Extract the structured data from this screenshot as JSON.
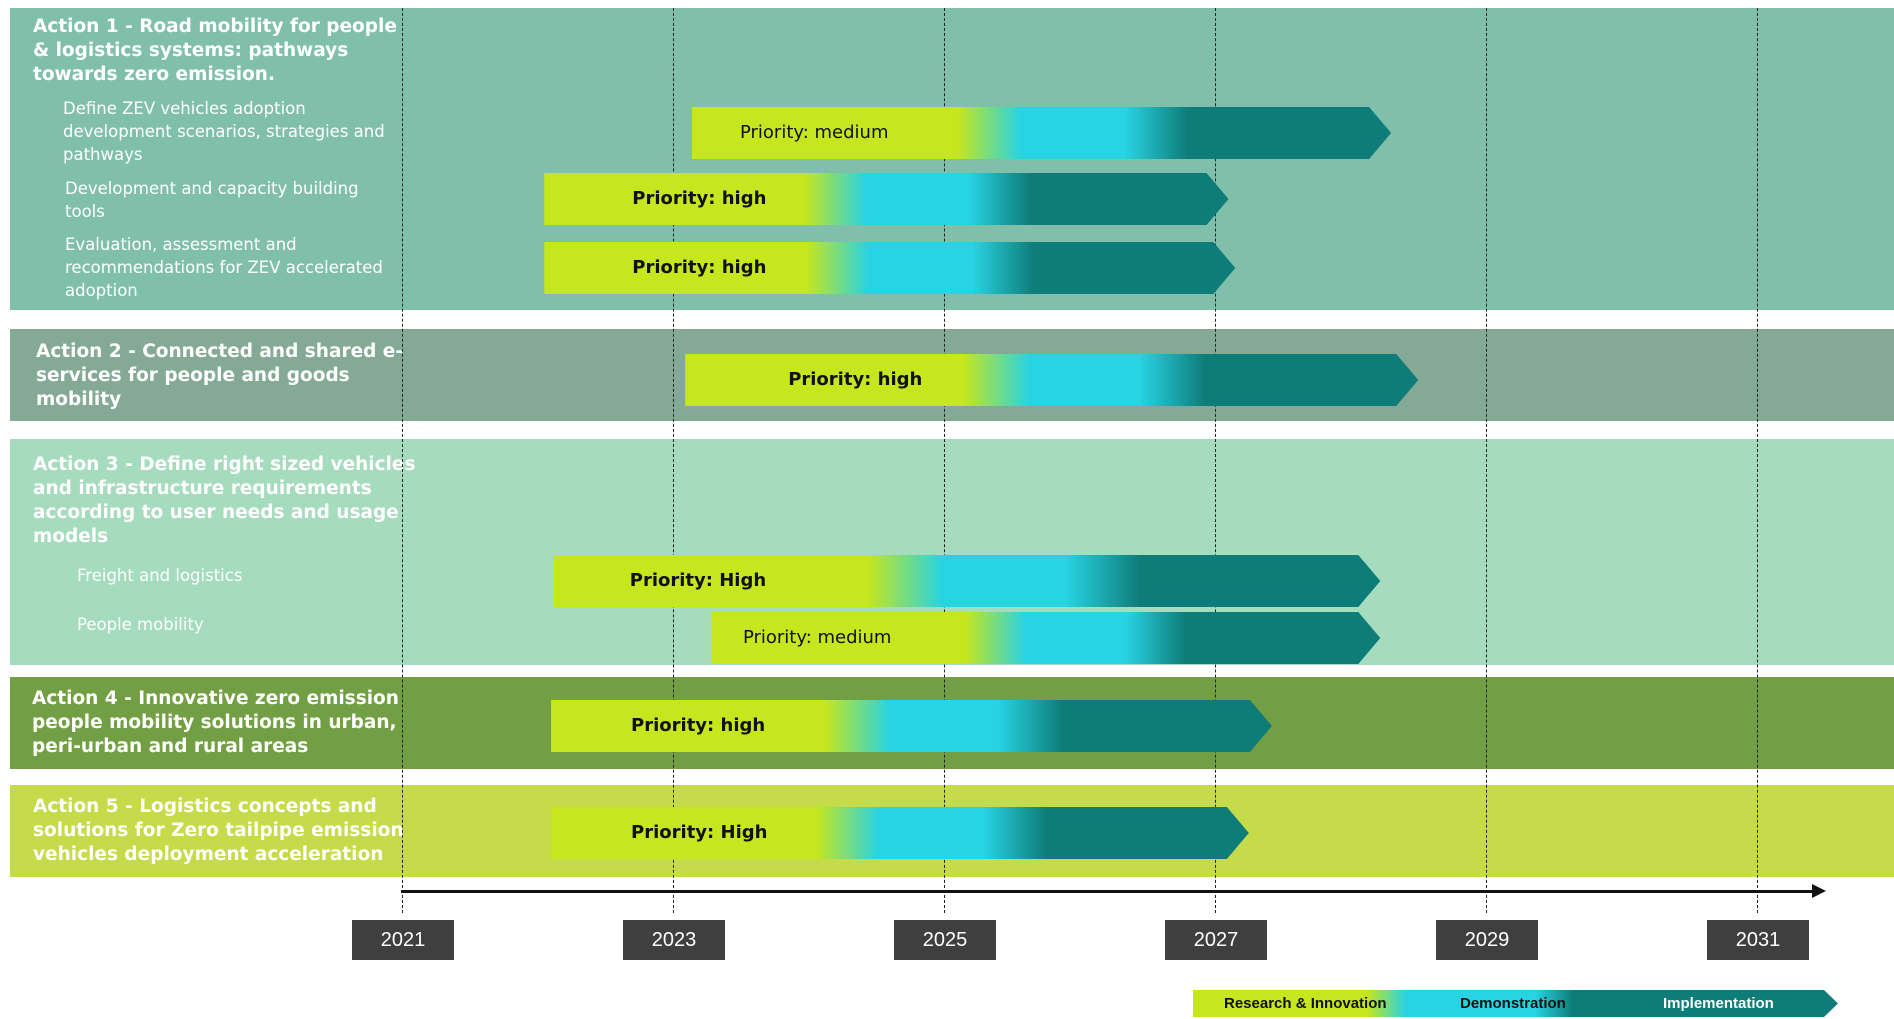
{
  "colors": {
    "action1_band": "#80c0aa",
    "action2_band": "#84aa96",
    "action3_band": "#a6dcbe",
    "action4_band": "#729f43",
    "action5_band": "#c6db4a",
    "research": "#c6e61d",
    "demonstration": "#28d3e3",
    "implementation": "#0e7c78",
    "year_box": "#3f3f3f"
  },
  "actions": [
    {
      "title_lines": [
        "Action 1 - Road mobility for people",
        "& logistics systems: pathways",
        "towards zero emission."
      ],
      "subs": [
        {
          "lines": [
            "Define ZEV vehicles adoption",
            "development scenarios, strategies and",
            "pathways"
          ]
        },
        {
          "lines": [
            "Development and capacity building",
            "tools"
          ]
        },
        {
          "lines": [
            "Evaluation, assessment and",
            "recommendations for ZEV accelerated",
            "adoption"
          ]
        }
      ]
    },
    {
      "title_lines": [
        "Action 2 - Connected and shared e-",
        "services for people and goods",
        "mobility"
      ],
      "subs": []
    },
    {
      "title_lines": [
        "Action 3 - Define right sized vehicles",
        "and infrastructure requirements",
        "according to user needs and usage",
        "models"
      ],
      "subs": [
        {
          "lines": [
            "Freight and logistics"
          ]
        },
        {
          "lines": [
            "People mobility"
          ]
        }
      ]
    },
    {
      "title_lines": [
        "Action 4 - Innovative zero emission",
        "people mobility solutions in urban,",
        "peri-urban and rural areas"
      ],
      "subs": []
    },
    {
      "title_lines": [
        "Action 5 - Logistics concepts and",
        "solutions for Zero tailpipe emission",
        "vehicles deployment acceleration"
      ],
      "subs": []
    }
  ],
  "chart_data": {
    "type": "gantt",
    "x_axis": {
      "ticks": [
        "2021",
        "2023",
        "2025",
        "2027",
        "2029",
        "2031"
      ],
      "range": [
        2021,
        2031
      ]
    },
    "legend": [
      "Research & Innovation",
      "Demonstration",
      "Implementation"
    ],
    "bars": [
      {
        "label": "Priority: medium",
        "start": 2023.14,
        "end": 2028.3,
        "bold": false
      },
      {
        "label": "Priority: high",
        "start": 2022.05,
        "end": 2027.1,
        "bold": true
      },
      {
        "label": "Priority: high",
        "start": 2022.05,
        "end": 2027.15,
        "bold": true
      },
      {
        "label": "Priority: high",
        "start": 2023.09,
        "end": 2028.5,
        "bold": true
      },
      {
        "label": "Priority: High",
        "start": 2022.12,
        "end": 2028.22,
        "bold": true
      },
      {
        "label": "Priority: medium",
        "start": 2023.28,
        "end": 2028.22,
        "bold": false
      },
      {
        "label": "Priority: high",
        "start": 2022.1,
        "end": 2027.42,
        "bold": true
      },
      {
        "label": "Priority: High",
        "start": 2022.1,
        "end": 2027.25,
        "bold": true
      }
    ]
  }
}
